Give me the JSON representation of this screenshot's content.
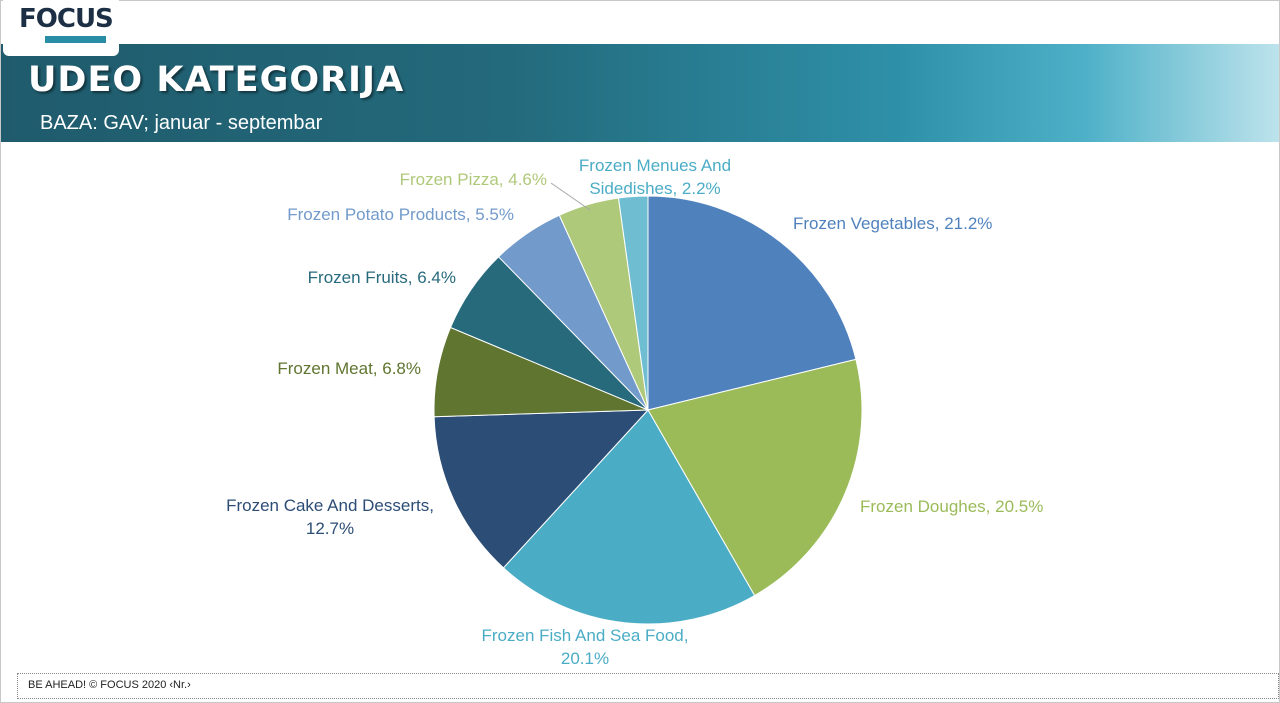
{
  "slide": {
    "logo_text": "FOCUS",
    "title": "UDEO KATEGORIJA",
    "subtitle": "BAZA: GAV; januar - septembar",
    "footer": "BE AHEAD! © FOCUS 2020 ‹Nr.›"
  },
  "chart_data": {
    "type": "pie",
    "categories": [
      "Frozen Vegetables",
      "Frozen Doughes",
      "Frozen Fish And Sea Food",
      "Frozen Cake And Desserts",
      "Frozen Meat",
      "Frozen Fruits",
      "Frozen Potato Products",
      "Frozen Pizza",
      "Frozen Menues And Sidedishes"
    ],
    "values": [
      21.2,
      20.5,
      20.1,
      12.7,
      6.8,
      6.4,
      5.5,
      4.6,
      2.2
    ],
    "labels": [
      [
        "Frozen Vegetables, 21.2%"
      ],
      [
        "Frozen Doughes, 20.5%"
      ],
      [
        "Frozen Fish And Sea Food,",
        "20.1%"
      ],
      [
        "Frozen Cake And Desserts,",
        "12.7%"
      ],
      [
        "Frozen Meat, 6.8%"
      ],
      [
        "Frozen Fruits, 6.4%"
      ],
      [
        "Frozen Potato Products, 5.5%"
      ],
      [
        "Frozen Pizza, 4.6%"
      ],
      [
        "Frozen Menues And",
        "Sidedishes, 2.2%"
      ]
    ],
    "colors": [
      "#4f81bd",
      "#9bbb59",
      "#4bacc6",
      "#2c4d75",
      "#5f7530",
      "#276a7c",
      "#729aca",
      "#afc97a",
      "#6fbdd1"
    ],
    "label_colors": [
      "#4f81bd",
      "#9bbb59",
      "#4bacc6",
      "#2c4d75",
      "#5f7530",
      "#276a7c",
      "#729aca",
      "#afc97a",
      "#4bacc6"
    ],
    "unit": "%",
    "legend": "none"
  }
}
